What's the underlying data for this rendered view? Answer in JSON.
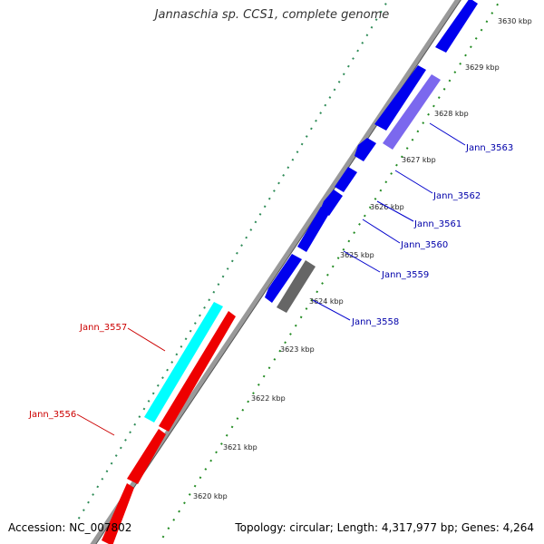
{
  "title": "Jannaschia sp. CCS1, complete genome",
  "accession_text": "Accession: NC_007802",
  "summary_text": "Topology: circular; Length: 4,317,977 bp; Genes: 4,264",
  "colors": {
    "forward": "#0000ee",
    "reverse": "#ee0000",
    "highlight_forward": "#7b68ee",
    "highlight_reverse": "#00ffff",
    "other": "#666666",
    "backbone": "#888888",
    "ticks": "#228b22",
    "label_forward": "#0000aa",
    "label_reverse": "#cc0000"
  },
  "scale_labels": [
    "3620 kbp",
    "3621 kbp",
    "3622 kbp",
    "3623 kbp",
    "3624 kbp",
    "3625 kbp",
    "3626 kbp",
    "3627 kbp",
    "3628 kbp",
    "3629 kbp",
    "3630 kbp"
  ],
  "gene_labels": {
    "forward": [
      "Jann_3563",
      "Jann_3562",
      "Jann_3561",
      "Jann_3560",
      "Jann_3559",
      "Jann_3558"
    ],
    "reverse": [
      "Jann_3557",
      "Jann_3556"
    ]
  }
}
